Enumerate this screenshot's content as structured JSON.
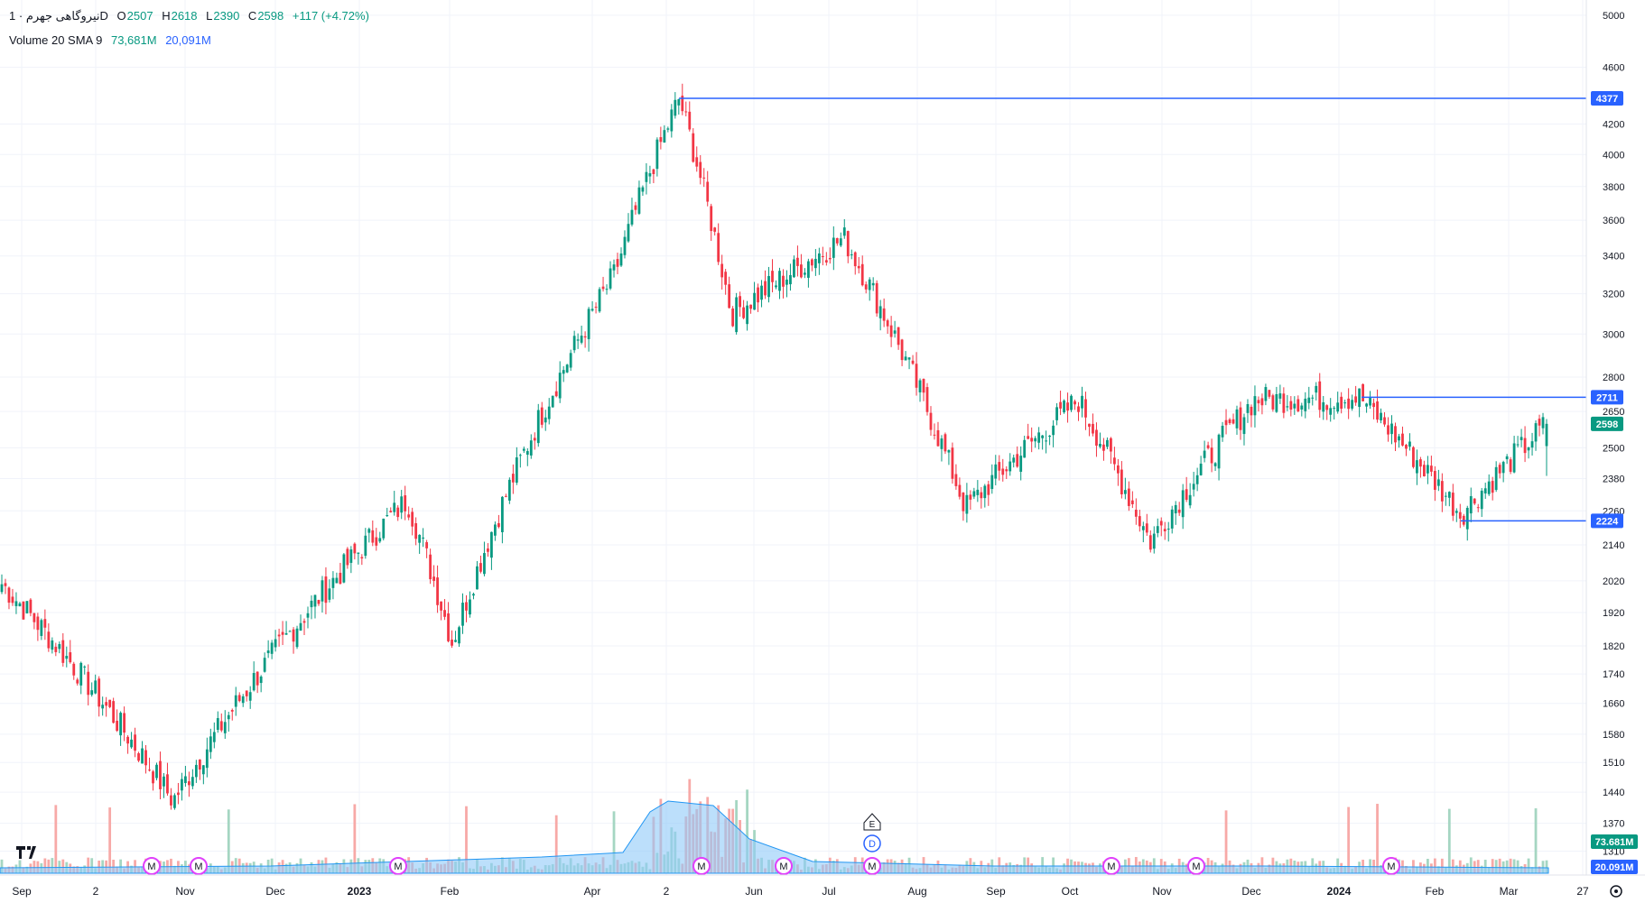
{
  "legend": {
    "symbol": "نیروگاهی جهرم",
    "interval": "1D",
    "o_label": "O",
    "o_value": "2507",
    "h_label": "H",
    "h_value": "2618",
    "l_label": "L",
    "l_value": "2390",
    "c_label": "C",
    "c_value": "2598",
    "change": "+117 (+4.72%)",
    "volume_label": "Volume 20 SMA 9",
    "volume_value": "73,681M",
    "sma_value": "20,091M"
  },
  "price_axis": {
    "ticks": [
      5000,
      4600,
      4377,
      4200,
      4000,
      3800,
      3600,
      3400,
      3200,
      3000,
      2800,
      2711,
      2650,
      2598,
      2500,
      2380,
      2260,
      2224,
      2140,
      2020,
      1920,
      1820,
      1740,
      1660,
      1580,
      1510,
      1440,
      1370,
      1310
    ],
    "tick_labels": [
      "5000",
      "4600",
      "4200",
      "4000",
      "3800",
      "3600",
      "3400",
      "3200",
      "3000",
      "2800",
      "2650",
      "2500",
      "2380",
      "2260",
      "2140",
      "2020",
      "1920",
      "1820",
      "1740",
      "1660",
      "1580",
      "1510",
      "1440",
      "1370",
      "1310"
    ],
    "badges": [
      {
        "label": "4377",
        "value": 4377,
        "color": "#2962ff"
      },
      {
        "label": "2711",
        "value": 2711,
        "color": "#2962ff"
      },
      {
        "label": "2598",
        "value": 2598,
        "color": "#089981"
      },
      {
        "label": "2224",
        "value": 2224,
        "color": "#2962ff"
      }
    ],
    "volume_badges": [
      {
        "label": "73.681M",
        "color": "#089981"
      },
      {
        "label": "20.091M",
        "color": "#2962ff"
      }
    ]
  },
  "time_axis": {
    "labels": [
      "Sep",
      "2",
      "Nov",
      "Dec",
      "2023",
      "Feb",
      "Apr",
      "2",
      "Jun",
      "Jul",
      "Aug",
      "Sep",
      "Oct",
      "Nov",
      "Dec",
      "2024",
      "Feb",
      "Mar",
      "27"
    ]
  },
  "chart_data": {
    "type": "candlestick",
    "symbol": "نیروگاهی جهرم",
    "interval": "1D",
    "log_scale": true,
    "ylim": [
      1270,
      5050
    ],
    "horizontal_lines": [
      4377,
      2711,
      2224
    ],
    "colors": {
      "up": "#089981",
      "down": "#f23645",
      "level": "#2962ff",
      "sma_fill": "#90caf9"
    },
    "key_points": [
      {
        "time": "Sep",
        "close": 2010
      },
      {
        "time": "late Oct",
        "close": 1420
      },
      {
        "time": "Jan 2023",
        "close": 2300
      },
      {
        "time": "Feb",
        "close": 1830
      },
      {
        "time": "Apr",
        "close": 3300
      },
      {
        "time": "May 2",
        "close": 4377
      },
      {
        "time": "Jun",
        "close": 3100
      },
      {
        "time": "Jul",
        "close": 3500
      },
      {
        "time": "Aug",
        "close": 2270
      },
      {
        "time": "Oct",
        "close": 2700
      },
      {
        "time": "Nov",
        "close": 2150
      },
      {
        "time": "Dec",
        "close": 2700
      },
      {
        "time": "Jan 2024",
        "close": 2711
      },
      {
        "time": "Feb",
        "close": 2250
      },
      {
        "time": "Mar",
        "close": 2598
      }
    ],
    "last": {
      "open": 2507,
      "high": 2618,
      "low": 2390,
      "close": 2598
    }
  },
  "markers": {
    "dividend_label": "D",
    "earnings_label": "E",
    "meeting_label": "M"
  },
  "logo_text": "TV"
}
